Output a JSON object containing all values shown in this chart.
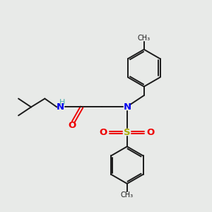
{
  "background_color": "#e8eae8",
  "bond_color": "#1a1a1a",
  "N_color": "#0000ee",
  "O_color": "#ee0000",
  "S_color": "#aaaa00",
  "H_color": "#44aaaa",
  "lw": 1.4,
  "figsize": [
    3.0,
    3.0
  ],
  "dpi": 100,
  "xlim": [
    0,
    10
  ],
  "ylim": [
    0,
    10
  ]
}
